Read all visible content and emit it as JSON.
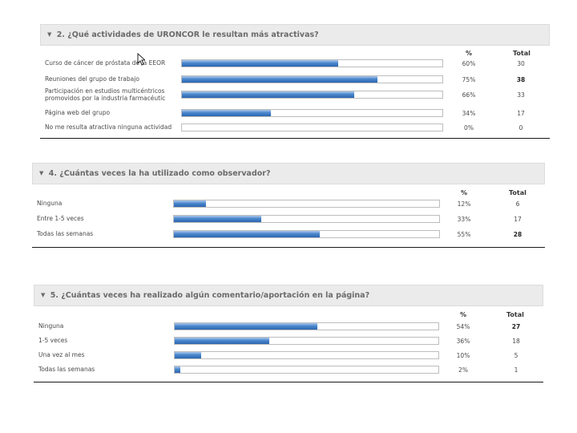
{
  "chart_data": [
    {
      "type": "bar",
      "title": "2. ¿Qué actividades de URONCOR le resultan más atractivas?",
      "columns": {
        "pct": "%",
        "total": "Total"
      },
      "categories": [
        "Curso de cáncer de próstata de la EEOR",
        "Reuniones del grupo de trabajo",
        "Participación en estudios multicéntricos promovidos por la industria farmacéutic",
        "Página web del grupo",
        "No me resulta atractiva ninguna actividad"
      ],
      "values": [
        60,
        75,
        66,
        34,
        0
      ],
      "pct_labels": [
        "60%",
        "75%",
        "66%",
        "34%",
        "0%"
      ],
      "totals": [
        "30",
        "38",
        "33",
        "17",
        "0"
      ],
      "xlim": [
        0,
        100
      ]
    },
    {
      "type": "bar",
      "title": "4. ¿Cuántas veces la ha utilizado como observador?",
      "columns": {
        "pct": "%",
        "total": "Total"
      },
      "categories": [
        "Ninguna",
        "Entre 1-5 veces",
        "Todas las semanas"
      ],
      "values": [
        12,
        33,
        55
      ],
      "pct_labels": [
        "12%",
        "33%",
        "55%"
      ],
      "totals": [
        "6",
        "17",
        "28"
      ],
      "xlim": [
        0,
        100
      ]
    },
    {
      "type": "bar",
      "title": "5. ¿Cuántas veces ha realizado algún comentario/aportación en la página?",
      "columns": {
        "pct": "%",
        "total": "Total"
      },
      "categories": [
        "Ninguna",
        "1-5 veces",
        "Una vez al mes",
        "Todas las semanas"
      ],
      "values": [
        54,
        36,
        10,
        2
      ],
      "pct_labels": [
        "54%",
        "36%",
        "10%",
        "2%"
      ],
      "totals": [
        "27",
        "18",
        "5",
        "1"
      ],
      "xlim": [
        0,
        100
      ]
    }
  ],
  "ui": {
    "collapse_icon": "triangle-down-icon",
    "cursor_icon": "mouse-pointer-icon",
    "bar_color": "#3a78c2",
    "header_bg": "#ebebeb"
  }
}
